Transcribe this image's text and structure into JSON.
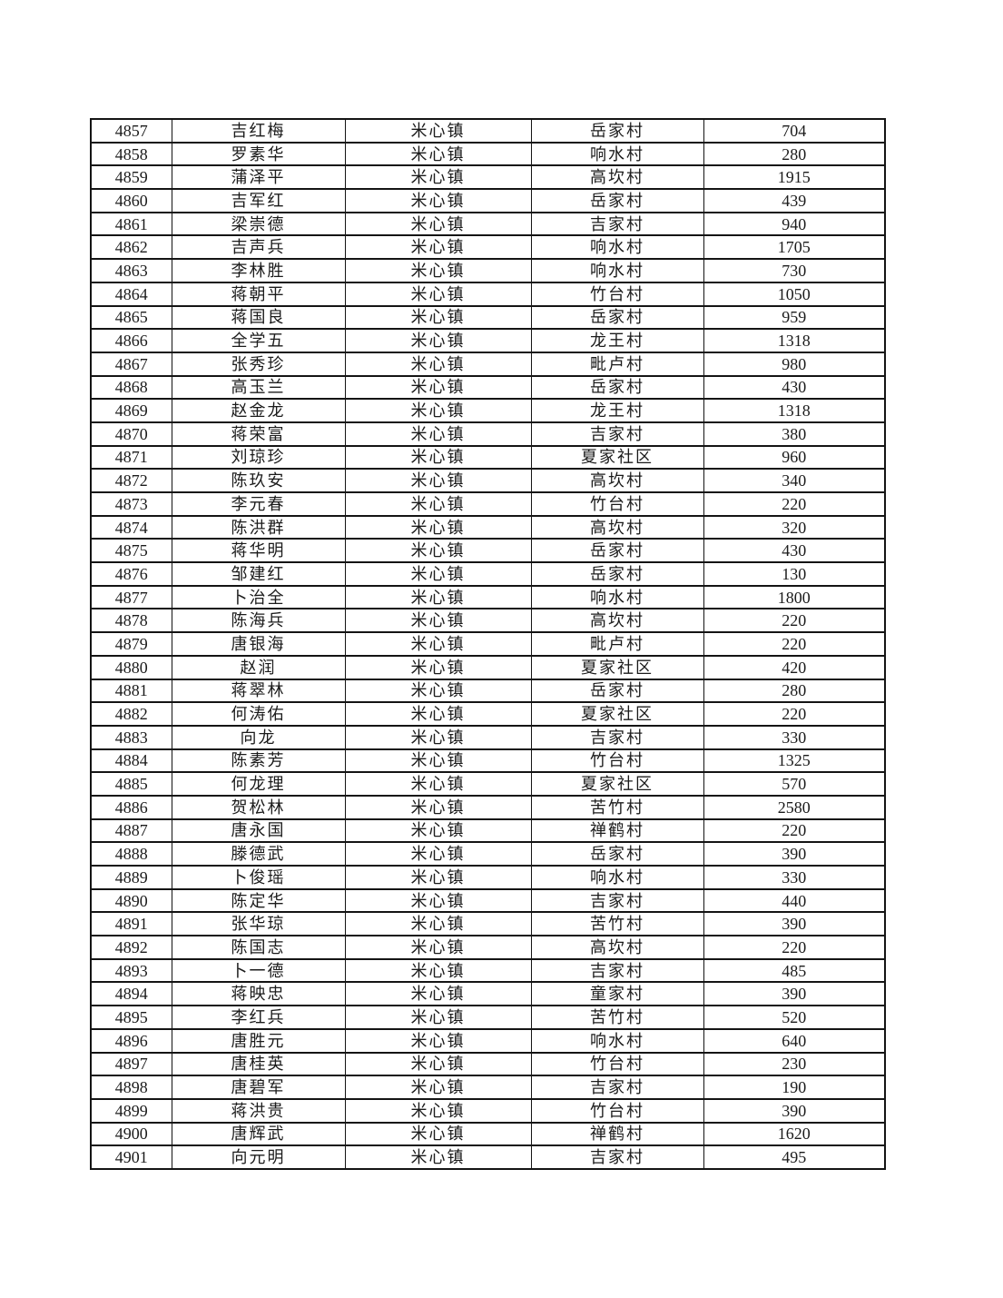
{
  "table": {
    "rows": [
      {
        "no": "4857",
        "name": "吉红梅",
        "town": "米心镇",
        "village": "岳家村",
        "amount": "704"
      },
      {
        "no": "4858",
        "name": "罗素华",
        "town": "米心镇",
        "village": "响水村",
        "amount": "280"
      },
      {
        "no": "4859",
        "name": "蒲泽平",
        "town": "米心镇",
        "village": "高坎村",
        "amount": "1915"
      },
      {
        "no": "4860",
        "name": "吉军红",
        "town": "米心镇",
        "village": "岳家村",
        "amount": "439"
      },
      {
        "no": "4861",
        "name": "梁崇德",
        "town": "米心镇",
        "village": "吉家村",
        "amount": "940"
      },
      {
        "no": "4862",
        "name": "吉声兵",
        "town": "米心镇",
        "village": "响水村",
        "amount": "1705"
      },
      {
        "no": "4863",
        "name": "李林胜",
        "town": "米心镇",
        "village": "响水村",
        "amount": "730"
      },
      {
        "no": "4864",
        "name": "蒋朝平",
        "town": "米心镇",
        "village": "竹台村",
        "amount": "1050"
      },
      {
        "no": "4865",
        "name": "蒋国良",
        "town": "米心镇",
        "village": "岳家村",
        "amount": "959"
      },
      {
        "no": "4866",
        "name": "全学五",
        "town": "米心镇",
        "village": "龙王村",
        "amount": "1318"
      },
      {
        "no": "4867",
        "name": "张秀珍",
        "town": "米心镇",
        "village": "毗卢村",
        "amount": "980"
      },
      {
        "no": "4868",
        "name": "高玉兰",
        "town": "米心镇",
        "village": "岳家村",
        "amount": "430"
      },
      {
        "no": "4869",
        "name": "赵金龙",
        "town": "米心镇",
        "village": "龙王村",
        "amount": "1318"
      },
      {
        "no": "4870",
        "name": "蒋荣富",
        "town": "米心镇",
        "village": "吉家村",
        "amount": "380"
      },
      {
        "no": "4871",
        "name": "刘琼珍",
        "town": "米心镇",
        "village": "夏家社区",
        "amount": "960"
      },
      {
        "no": "4872",
        "name": "陈玖安",
        "town": "米心镇",
        "village": "高坎村",
        "amount": "340"
      },
      {
        "no": "4873",
        "name": "李元春",
        "town": "米心镇",
        "village": "竹台村",
        "amount": "220"
      },
      {
        "no": "4874",
        "name": "陈洪群",
        "town": "米心镇",
        "village": "高坎村",
        "amount": "320"
      },
      {
        "no": "4875",
        "name": "蒋华明",
        "town": "米心镇",
        "village": "岳家村",
        "amount": "430"
      },
      {
        "no": "4876",
        "name": "邹建红",
        "town": "米心镇",
        "village": "岳家村",
        "amount": "130"
      },
      {
        "no": "4877",
        "name": "卜治全",
        "town": "米心镇",
        "village": "响水村",
        "amount": "1800"
      },
      {
        "no": "4878",
        "name": "陈海兵",
        "town": "米心镇",
        "village": "高坎村",
        "amount": "220"
      },
      {
        "no": "4879",
        "name": "唐银海",
        "town": "米心镇",
        "village": "毗卢村",
        "amount": "220"
      },
      {
        "no": "4880",
        "name": "赵润",
        "town": "米心镇",
        "village": "夏家社区",
        "amount": "420"
      },
      {
        "no": "4881",
        "name": "蒋翠林",
        "town": "米心镇",
        "village": "岳家村",
        "amount": "280"
      },
      {
        "no": "4882",
        "name": "何涛佑",
        "town": "米心镇",
        "village": "夏家社区",
        "amount": "220"
      },
      {
        "no": "4883",
        "name": "向龙",
        "town": "米心镇",
        "village": "吉家村",
        "amount": "330"
      },
      {
        "no": "4884",
        "name": "陈素芳",
        "town": "米心镇",
        "village": "竹台村",
        "amount": "1325"
      },
      {
        "no": "4885",
        "name": "何龙理",
        "town": "米心镇",
        "village": "夏家社区",
        "amount": "570"
      },
      {
        "no": "4886",
        "name": "贺松林",
        "town": "米心镇",
        "village": "苦竹村",
        "amount": "2580"
      },
      {
        "no": "4887",
        "name": "唐永国",
        "town": "米心镇",
        "village": "禅鹤村",
        "amount": "220"
      },
      {
        "no": "4888",
        "name": "滕德武",
        "town": "米心镇",
        "village": "岳家村",
        "amount": "390"
      },
      {
        "no": "4889",
        "name": "卜俊瑶",
        "town": "米心镇",
        "village": "响水村",
        "amount": "330"
      },
      {
        "no": "4890",
        "name": "陈定华",
        "town": "米心镇",
        "village": "吉家村",
        "amount": "440"
      },
      {
        "no": "4891",
        "name": "张华琼",
        "town": "米心镇",
        "village": "苦竹村",
        "amount": "390"
      },
      {
        "no": "4892",
        "name": "陈国志",
        "town": "米心镇",
        "village": "高坎村",
        "amount": "220"
      },
      {
        "no": "4893",
        "name": "卜一德",
        "town": "米心镇",
        "village": "吉家村",
        "amount": "485"
      },
      {
        "no": "4894",
        "name": "蒋映忠",
        "town": "米心镇",
        "village": "童家村",
        "amount": "390"
      },
      {
        "no": "4895",
        "name": "李红兵",
        "town": "米心镇",
        "village": "苦竹村",
        "amount": "520"
      },
      {
        "no": "4896",
        "name": "唐胜元",
        "town": "米心镇",
        "village": "响水村",
        "amount": "640"
      },
      {
        "no": "4897",
        "name": "唐桂英",
        "town": "米心镇",
        "village": "竹台村",
        "amount": "230"
      },
      {
        "no": "4898",
        "name": "唐碧军",
        "town": "米心镇",
        "village": "吉家村",
        "amount": "190"
      },
      {
        "no": "4899",
        "name": "蒋洪贵",
        "town": "米心镇",
        "village": "竹台村",
        "amount": "390"
      },
      {
        "no": "4900",
        "name": "唐辉武",
        "town": "米心镇",
        "village": "禅鹤村",
        "amount": "1620"
      },
      {
        "no": "4901",
        "name": "向元明",
        "town": "米心镇",
        "village": "吉家村",
        "amount": "495"
      }
    ]
  }
}
